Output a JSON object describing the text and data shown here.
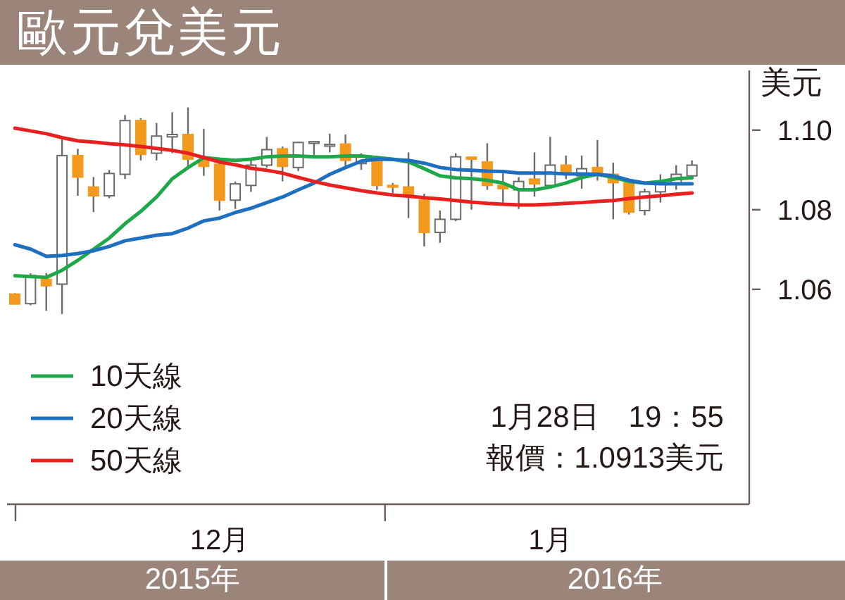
{
  "chart_data": {
    "type": "candlestick",
    "title": "歐元兌美元",
    "ylabel": "美元",
    "categories": [
      null,
      null,
      null,
      null,
      null,
      null,
      null,
      null,
      null,
      null,
      null,
      null,
      null,
      "12月",
      null,
      null,
      null,
      null,
      null,
      null,
      null,
      null,
      null,
      null,
      null,
      null,
      null,
      null,
      null,
      null,
      null,
      null,
      null,
      null,
      "1月",
      null,
      null,
      null,
      null,
      null,
      null,
      null,
      null,
      null
    ],
    "ohlc": [
      [
        1.0588,
        1.059,
        1.0563,
        1.0563
      ],
      [
        1.0564,
        1.064,
        1.056,
        1.0635
      ],
      [
        1.0625,
        1.0641,
        1.0546,
        1.0609
      ],
      [
        1.0613,
        1.0977,
        1.0538,
        1.0936
      ],
      [
        1.0936,
        1.0953,
        1.0835,
        1.0882
      ],
      [
        1.0857,
        1.0882,
        1.0794,
        1.0835
      ],
      [
        1.0835,
        1.09,
        1.0829,
        1.0891
      ],
      [
        1.0889,
        1.1038,
        1.0877,
        1.1024
      ],
      [
        1.1024,
        1.103,
        1.0924,
        1.0939
      ],
      [
        1.0942,
        1.1018,
        1.0924,
        1.0985
      ],
      [
        1.0983,
        1.1045,
        1.0942,
        1.0989
      ],
      [
        1.0989,
        1.1057,
        1.0909,
        1.0927
      ],
      [
        1.0924,
        1.1003,
        1.0885,
        1.0909
      ],
      [
        1.0914,
        1.0918,
        1.0798,
        1.0824
      ],
      [
        1.0824,
        1.0871,
        1.0802,
        1.0865
      ],
      [
        1.0861,
        1.0924,
        1.0845,
        1.0912
      ],
      [
        1.0912,
        1.0983,
        1.0906,
        1.0951
      ],
      [
        1.0953,
        1.0959,
        1.0871,
        1.0909
      ],
      [
        1.0906,
        1.0971,
        1.0897,
        1.0969
      ],
      [
        1.0969,
        1.0971,
        1.0936,
        1.0971
      ],
      [
        1.0962,
        1.0991,
        1.0944,
        1.0964
      ],
      [
        1.0965,
        1.0989,
        1.0906,
        1.0924
      ],
      [
        1.0916,
        1.0942,
        1.09,
        1.0932
      ],
      [
        1.0932,
        1.0936,
        1.085,
        1.0861
      ],
      [
        1.0861,
        1.0867,
        1.0841,
        1.0857
      ],
      [
        1.0857,
        1.0944,
        1.0779,
        1.0835
      ],
      [
        1.0824,
        1.084,
        1.0708,
        1.0743
      ],
      [
        1.0743,
        1.0798,
        1.0717,
        1.0776
      ],
      [
        1.0776,
        1.0942,
        1.0771,
        1.0933
      ],
      [
        1.0932,
        1.0932,
        1.08,
        1.0927
      ],
      [
        1.092,
        1.0967,
        1.085,
        1.0861
      ],
      [
        1.0861,
        1.0897,
        1.0818,
        1.0853
      ],
      [
        1.085,
        1.0882,
        1.0802,
        1.0871
      ],
      [
        1.0877,
        1.0944,
        1.0833,
        1.0865
      ],
      [
        1.0861,
        1.0983,
        1.0853,
        1.0912
      ],
      [
        1.0912,
        1.0936,
        1.0877,
        1.0892
      ],
      [
        1.0885,
        1.0936,
        1.0853,
        1.0903
      ],
      [
        1.0906,
        1.0975,
        1.0873,
        1.0889
      ],
      [
        1.0889,
        1.0918,
        1.0776,
        1.0868
      ],
      [
        1.0868,
        1.0868,
        1.0788,
        1.0794
      ],
      [
        1.0798,
        1.0853,
        1.0786,
        1.0845
      ],
      [
        1.0845,
        1.0889,
        1.0818,
        1.0865
      ],
      [
        1.0865,
        1.0912,
        1.085,
        1.0889
      ],
      [
        1.0885,
        1.0924,
        1.0882,
        1.0912
      ]
    ],
    "colors": [
      "#f39a1e",
      "#ffffff",
      "#f39a1e",
      "#ffffff",
      "#f39a1e",
      "#f39a1e",
      "#ffffff",
      "#ffffff",
      "#f39a1e",
      "#ffffff",
      "#ffffff",
      "#f39a1e",
      "#f39a1e",
      "#f39a1e",
      "#ffffff",
      "#ffffff",
      "#ffffff",
      "#f39a1e",
      "#ffffff",
      "#ffffff",
      "#ffffff",
      "#f39a1e",
      "#ffffff",
      "#f39a1e",
      "#f39a1e",
      "#f39a1e",
      "#f39a1e",
      "#ffffff",
      "#ffffff",
      "#f39a1e",
      "#f39a1e",
      "#f39a1e",
      "#ffffff",
      "#f39a1e",
      "#ffffff",
      "#f39a1e",
      "#ffffff",
      "#f39a1e",
      "#f39a1e",
      "#f39a1e",
      "#ffffff",
      "#ffffff",
      "#ffffff",
      "#ffffff"
    ],
    "series": [
      {
        "name": "10天線",
        "type": "line",
        "color": "#1ea84a",
        "values": [
          1.0634,
          1.0632,
          1.063,
          1.0648,
          1.0673,
          1.0701,
          1.0729,
          1.0765,
          1.0796,
          1.0832,
          1.0878,
          1.0906,
          1.0931,
          1.0927,
          1.0924,
          1.0927,
          1.0933,
          1.0935,
          1.0935,
          1.0933,
          1.0933,
          1.0935,
          1.0935,
          1.0931,
          1.0927,
          1.092,
          1.0903,
          1.0885,
          1.088,
          1.0878,
          1.0874,
          1.0867,
          1.085,
          1.085,
          1.0857,
          1.0867,
          1.0881,
          1.0889,
          1.0881,
          1.0871,
          1.0867,
          1.0871,
          1.0878,
          1.088
        ]
      },
      {
        "name": "20天線",
        "type": "line",
        "color": "#1f6fc0",
        "values": [
          1.0712,
          1.0701,
          1.0683,
          1.0685,
          1.069,
          1.0697,
          1.0708,
          1.0722,
          1.0729,
          1.0736,
          1.074,
          1.0754,
          1.0772,
          1.0779,
          1.0793,
          1.0804,
          1.0818,
          1.0832,
          1.085,
          1.0867,
          1.0889,
          1.0906,
          1.0922,
          1.0927,
          1.0926,
          1.0924,
          1.0917,
          1.0906,
          1.0901,
          1.0899,
          1.0897,
          1.0896,
          1.0892,
          1.0892,
          1.0892,
          1.089,
          1.089,
          1.0889,
          1.0885,
          1.0874,
          1.0867,
          1.0865,
          1.0865,
          1.0865
        ]
      },
      {
        "name": "50天線",
        "type": "line",
        "color": "#e8201f",
        "values": [
          1.1005,
          1.0998,
          1.0991,
          1.0981,
          1.0973,
          1.097,
          1.0966,
          1.0963,
          1.0959,
          1.0954,
          1.0949,
          1.0942,
          1.0931,
          1.092,
          1.0913,
          1.0904,
          1.0899,
          1.0892,
          1.0881,
          1.0871,
          1.0862,
          1.0855,
          1.0848,
          1.0842,
          1.0837,
          1.0834,
          1.083,
          1.0827,
          1.0823,
          1.0819,
          1.0816,
          1.0814,
          1.0812,
          1.0812,
          1.0814,
          1.0816,
          1.0818,
          1.0821,
          1.0823,
          1.0828,
          1.0832,
          1.0835,
          1.0839,
          1.0842
        ]
      }
    ],
    "ylim": [
      1.006,
      1.115
    ],
    "yticks": [
      1.06,
      1.08,
      {
        "value": 1.1,
        "label": "1.10"
      }
    ],
    "legend": "bottom left",
    "marker": "none",
    "line_style": "solid",
    "annotations": [
      "1月28日　19：55",
      "報價：1.0913美元",
      "2015年",
      "2016年"
    ]
  }
}
